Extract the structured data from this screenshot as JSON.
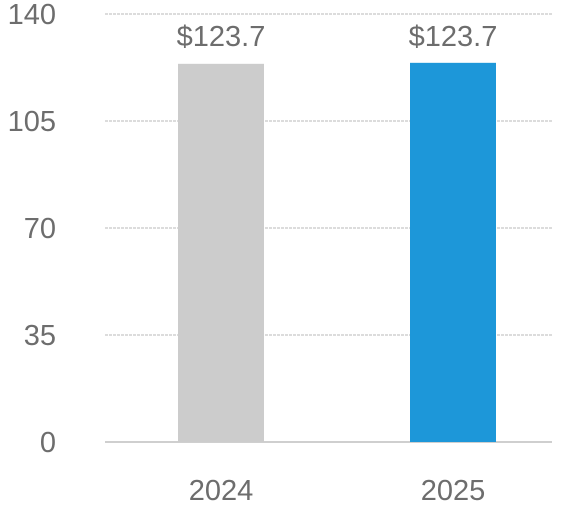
{
  "chart_data": {
    "type": "bar",
    "categories": [
      "2024",
      "2025"
    ],
    "values": [
      123.7,
      123.7
    ],
    "data_labels": [
      "$123.7",
      "$123.7"
    ],
    "colors": [
      "#cccccc",
      "#1d97d9"
    ],
    "ylim": [
      0,
      140
    ],
    "yticks": [
      "0",
      "35",
      "70",
      "105",
      "140"
    ],
    "grid": true,
    "legend": "none"
  }
}
